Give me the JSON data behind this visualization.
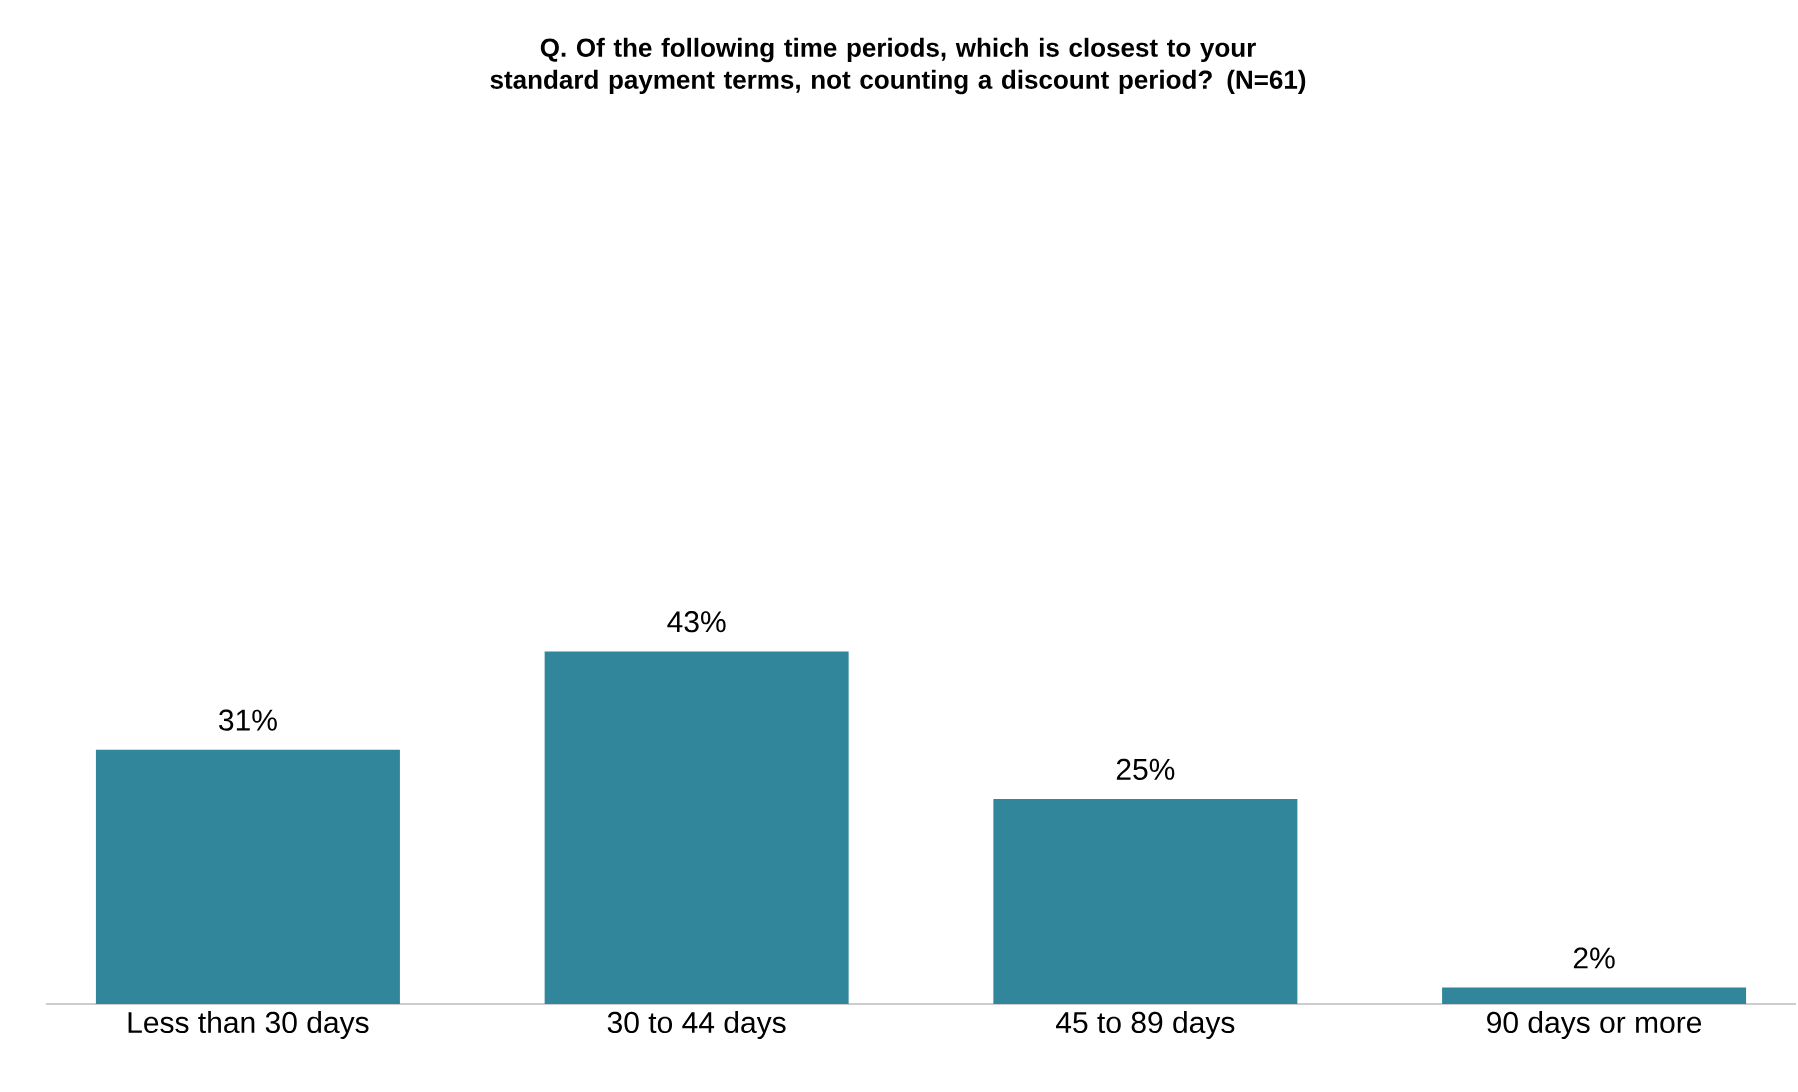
{
  "chart_data": {
    "type": "bar",
    "title": "Q. Of the following time periods, which is closest to your standard payment terms, not counting a discount period? (N=61)",
    "categories": [
      "Less than 30 days",
      "30 to 44 days",
      "45 to 89 days",
      "90 days or more"
    ],
    "values": [
      31,
      43,
      25,
      2
    ],
    "value_labels": [
      "31%",
      "43%",
      "25%",
      "2%"
    ],
    "color": "#31869b"
  }
}
